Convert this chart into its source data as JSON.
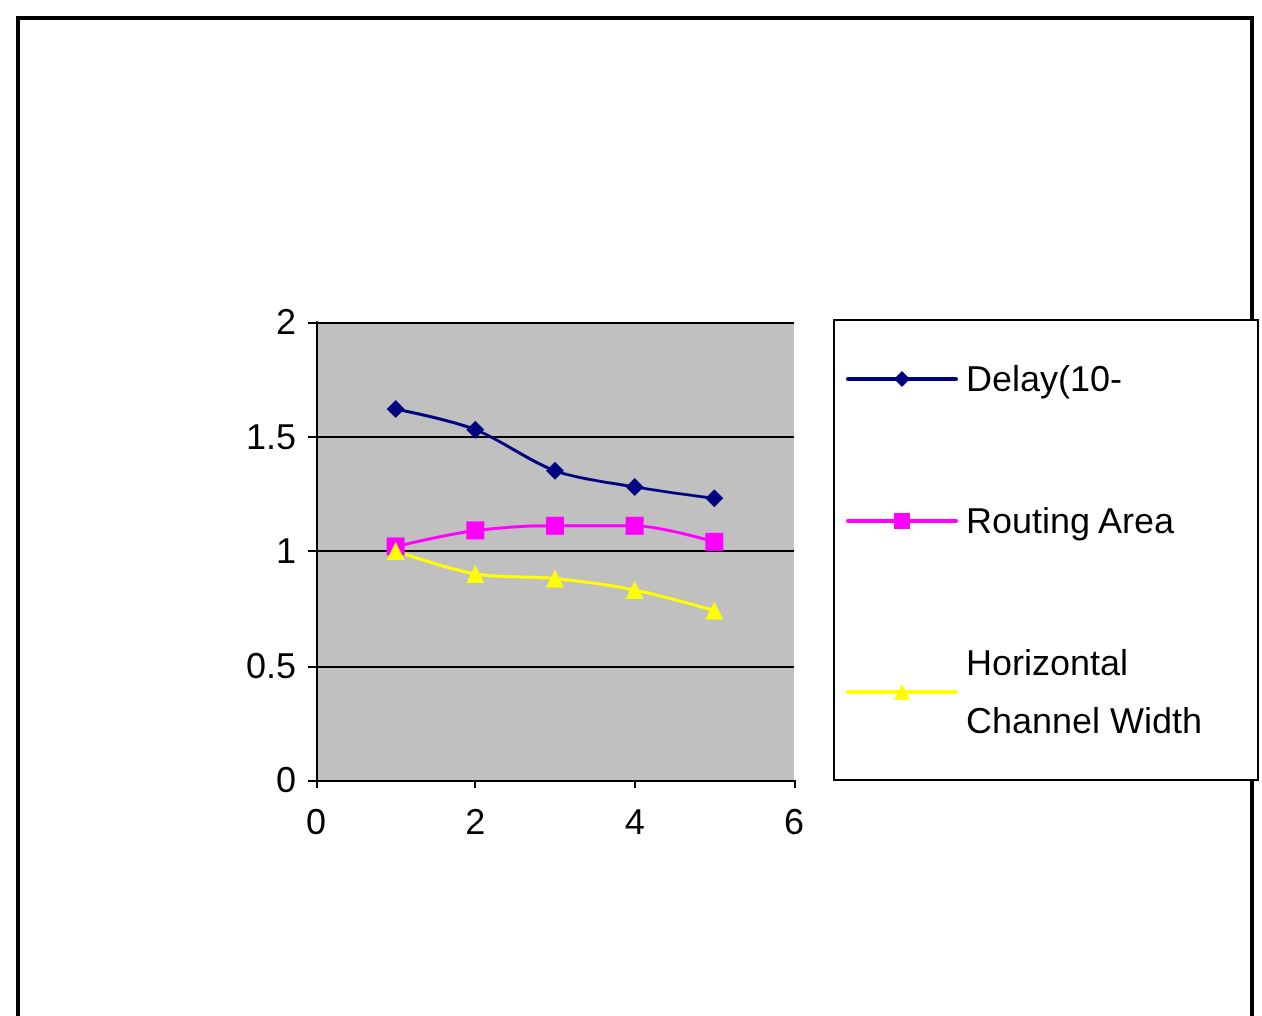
{
  "chart_data": {
    "type": "line",
    "x": [
      1,
      2,
      3,
      4,
      5
    ],
    "series": [
      {
        "name": "Delay(10-",
        "color": "#000080",
        "marker": "diamond",
        "values": [
          1.62,
          1.53,
          1.35,
          1.28,
          1.23
        ]
      },
      {
        "name": "Routing Area",
        "color": "#ff00ff",
        "marker": "square",
        "values": [
          1.02,
          1.09,
          1.11,
          1.11,
          1.04
        ]
      },
      {
        "name": "Horizontal Channel Width",
        "color": "#ffff00",
        "marker": "triangle",
        "values": [
          1.0,
          0.9,
          0.88,
          0.83,
          0.74
        ]
      }
    ],
    "xlim": [
      0,
      6
    ],
    "xticks": [
      0,
      2,
      4,
      6
    ],
    "ylim": [
      0,
      2
    ],
    "yticks": [
      0,
      0.5,
      1,
      1.5,
      2
    ],
    "grid": "y",
    "legend": "right"
  }
}
